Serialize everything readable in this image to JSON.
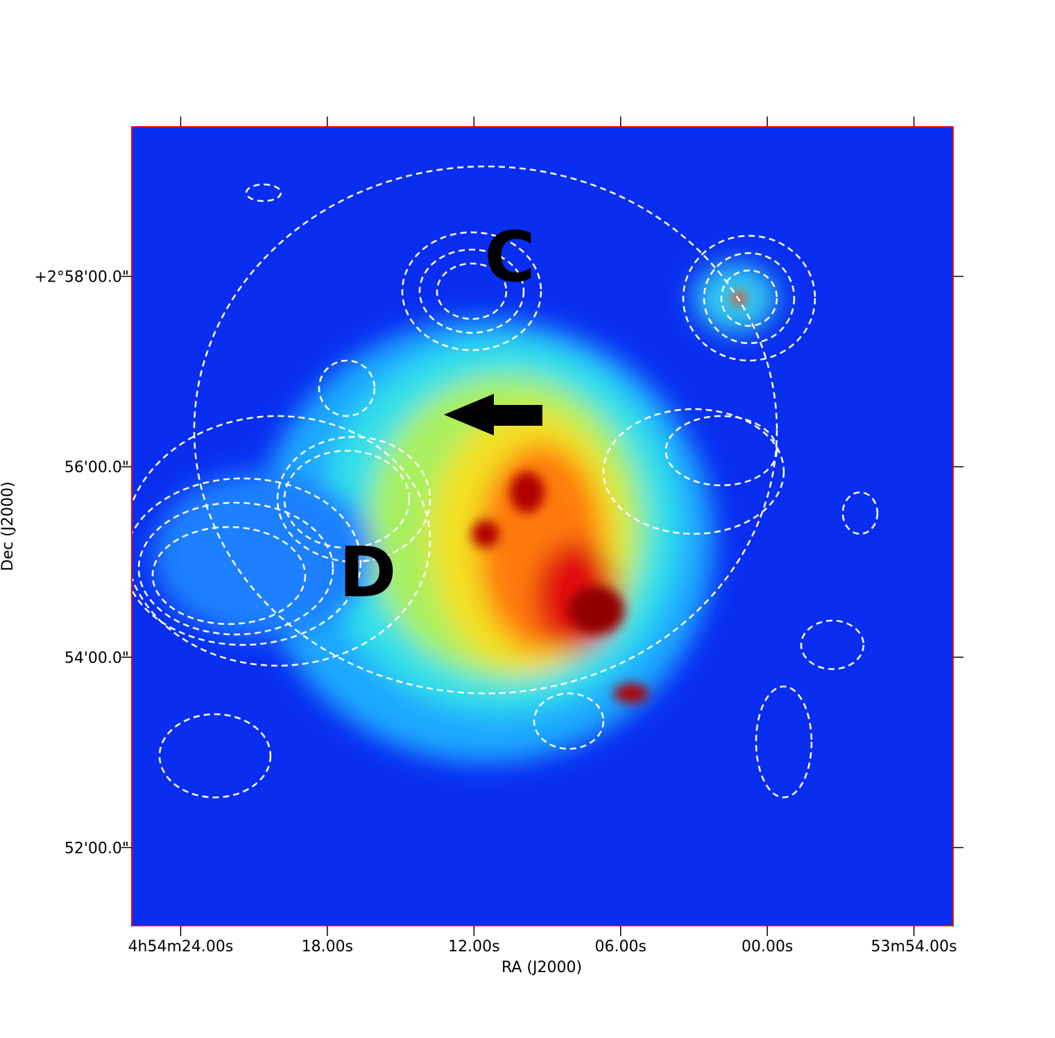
{
  "chart_data": {
    "type": "image",
    "xlabel": "RA (J2000)",
    "ylabel": "Dec (J2000)",
    "xlim": [
      26.0,
      -7.6
    ],
    "xticks": [
      {
        "value": 24,
        "label": "4h54m24.00s"
      },
      {
        "value": 18,
        "label": "18.00s"
      },
      {
        "value": 12,
        "label": "12.00s"
      },
      {
        "value": 6,
        "label": "06.00s"
      },
      {
        "value": 0,
        "label": "00.00s"
      },
      {
        "value": -6,
        "label": "53m54.00s"
      }
    ],
    "ylim": [
      51.18,
      59.57
    ],
    "yticks": [
      {
        "value": 58,
        "label": "+2°58'00.0\""
      },
      {
        "value": 56,
        "label": "56'00.0\""
      },
      {
        "value": 54,
        "label": "54'00.0\""
      },
      {
        "value": 52,
        "label": "52'00.0\""
      }
    ],
    "frame_color": "#ff0000",
    "annotations": [
      "C",
      "D"
    ]
  }
}
